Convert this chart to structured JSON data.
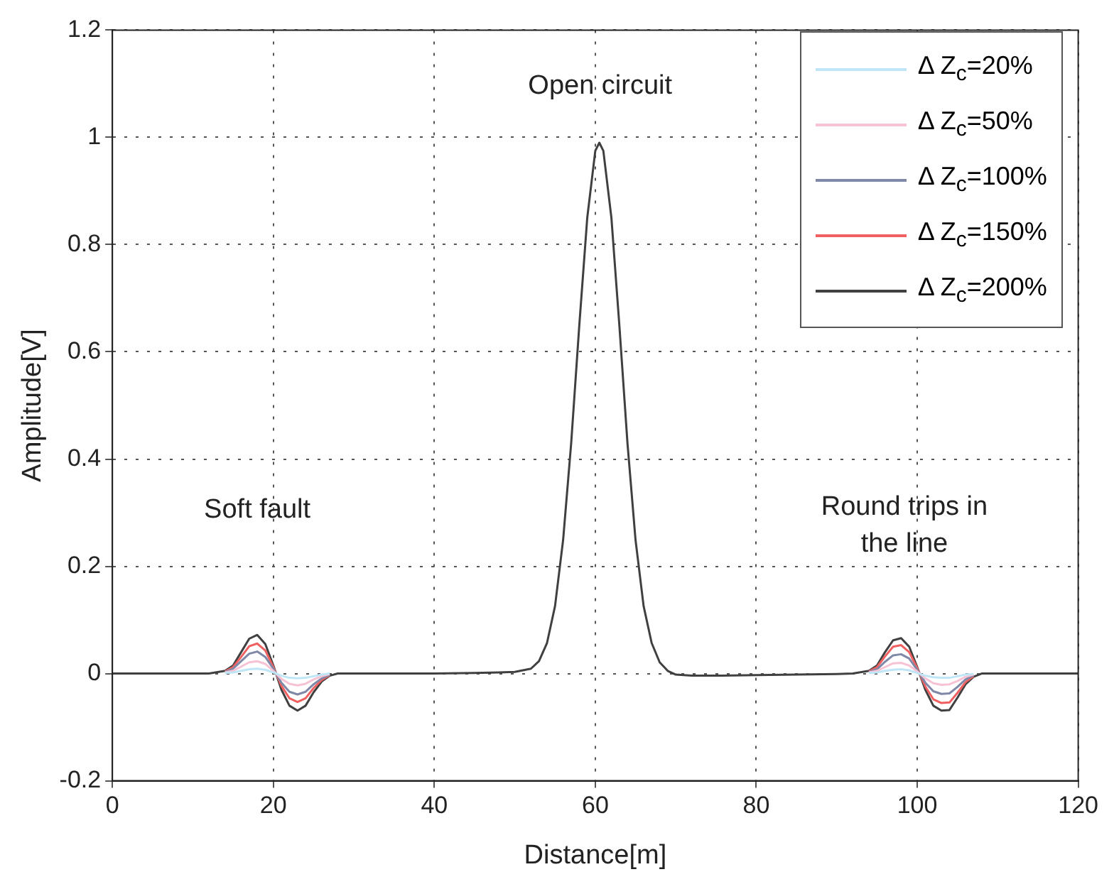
{
  "chart_data": {
    "type": "line",
    "xlabel": "Distance[m]",
    "ylabel": "Amplitude[V]",
    "x": [
      0,
      5,
      10,
      12,
      14,
      15,
      16,
      17,
      18,
      19,
      20,
      21,
      22,
      23,
      24,
      25,
      26,
      27,
      28,
      30,
      35,
      40,
      45,
      48,
      50,
      52,
      53,
      54,
      55,
      56,
      57,
      58,
      59,
      60,
      60.5,
      61,
      62,
      63,
      64,
      65,
      66,
      67,
      68,
      69,
      70,
      72,
      75,
      80,
      85,
      90,
      92,
      94,
      95,
      96,
      97,
      98,
      99,
      100,
      101,
      102,
      103,
      104,
      105,
      106,
      107,
      108,
      110,
      115,
      120
    ],
    "series": [
      {
        "name": "Δ Z$_{c}$=20%",
        "color": "#bfe6f7",
        "values": [
          null,
          null,
          null,
          null,
          0.001,
          0.002,
          0.005,
          0.008,
          0.009,
          0.007,
          0.002,
          -0.004,
          -0.008,
          -0.009,
          -0.008,
          -0.005,
          -0.002,
          0,
          null,
          null,
          null,
          null,
          null,
          null,
          null,
          null,
          null,
          null,
          null,
          null,
          null,
          null,
          null,
          null,
          null,
          null,
          null,
          null,
          null,
          null,
          null,
          null,
          null,
          null,
          null,
          null,
          null,
          null,
          null,
          null,
          null,
          0.001,
          0.002,
          0.005,
          0.007,
          0.008,
          0.006,
          0.001,
          -0.004,
          -0.007,
          -0.008,
          -0.008,
          -0.005,
          -0.002,
          -0.001,
          null,
          null,
          null,
          null
        ]
      },
      {
        "name": "Δ Z$_{c}$=50%",
        "color": "#f7c2d4",
        "values": [
          null,
          null,
          null,
          null,
          0.002,
          0.005,
          0.013,
          0.021,
          0.023,
          0.018,
          0.005,
          -0.01,
          -0.019,
          -0.022,
          -0.019,
          -0.011,
          -0.005,
          -0.001,
          null,
          null,
          null,
          null,
          null,
          null,
          null,
          null,
          null,
          null,
          null,
          null,
          null,
          null,
          null,
          null,
          null,
          null,
          null,
          null,
          null,
          null,
          null,
          null,
          null,
          null,
          null,
          null,
          null,
          null,
          null,
          null,
          null,
          0.002,
          0.005,
          0.012,
          0.019,
          0.02,
          0.015,
          0.004,
          -0.009,
          -0.018,
          -0.021,
          -0.02,
          -0.014,
          -0.006,
          -0.002,
          null,
          null,
          null,
          null
        ]
      },
      {
        "name": "Δ Z$_{c}$=100%",
        "color": "#8088a8",
        "values": [
          null,
          null,
          null,
          null,
          0.003,
          0.009,
          0.023,
          0.037,
          0.041,
          0.031,
          0.009,
          -0.017,
          -0.034,
          -0.039,
          -0.034,
          -0.02,
          -0.009,
          -0.002,
          null,
          null,
          null,
          null,
          null,
          null,
          null,
          null,
          null,
          null,
          null,
          null,
          null,
          null,
          null,
          null,
          null,
          null,
          null,
          null,
          null,
          null,
          null,
          null,
          null,
          null,
          null,
          null,
          null,
          null,
          null,
          null,
          null,
          0.003,
          0.008,
          0.022,
          0.034,
          0.036,
          0.028,
          0.007,
          -0.017,
          -0.033,
          -0.038,
          -0.037,
          -0.025,
          -0.011,
          -0.003,
          null,
          null,
          null,
          null
        ]
      },
      {
        "name": "Δ Z$_{c}$=150%",
        "color": "#f06060",
        "values": [
          null,
          null,
          null,
          null,
          0.004,
          0.012,
          0.031,
          0.051,
          0.056,
          0.043,
          0.012,
          -0.023,
          -0.046,
          -0.053,
          -0.046,
          -0.027,
          -0.012,
          -0.003,
          null,
          null,
          null,
          null,
          null,
          null,
          null,
          null,
          null,
          null,
          null,
          null,
          null,
          null,
          null,
          null,
          null,
          null,
          null,
          null,
          null,
          null,
          null,
          null,
          null,
          null,
          null,
          null,
          null,
          null,
          null,
          null,
          null,
          0.004,
          0.012,
          0.032,
          0.05,
          0.053,
          0.04,
          0.01,
          -0.024,
          -0.048,
          -0.055,
          -0.054,
          -0.036,
          -0.016,
          -0.005,
          null,
          null,
          null,
          null
        ]
      },
      {
        "name": "Δ Z$_{c}$=200%",
        "color": "#404040",
        "values": [
          0,
          0,
          0,
          0,
          0.005,
          0.015,
          0.04,
          0.065,
          0.072,
          0.055,
          0.015,
          -0.03,
          -0.06,
          -0.069,
          -0.06,
          -0.035,
          -0.015,
          -0.004,
          0,
          0,
          0,
          0,
          0.001,
          0.002,
          0.003,
          0.009,
          0.023,
          0.057,
          0.126,
          0.249,
          0.429,
          0.647,
          0.85,
          0.975,
          0.99,
          0.975,
          0.85,
          0.647,
          0.429,
          0.249,
          0.126,
          0.057,
          0.021,
          0.005,
          -0.002,
          -0.004,
          -0.004,
          -0.003,
          -0.002,
          -0.001,
          0,
          0.005,
          0.015,
          0.04,
          0.062,
          0.066,
          0.05,
          0.012,
          -0.03,
          -0.06,
          -0.069,
          -0.068,
          -0.045,
          -0.02,
          -0.006,
          0,
          0,
          0,
          0
        ]
      }
    ],
    "xlim": [
      0,
      120
    ],
    "xticks": [
      0,
      20,
      40,
      60,
      80,
      100,
      120
    ],
    "ylim": [
      -0.2,
      1.2
    ],
    "yticks": [
      -0.2,
      0,
      0.2,
      0.4,
      0.6,
      0.8,
      1,
      1.2
    ],
    "grid": true,
    "legend": "top right",
    "marker": "none",
    "line_style": "solid",
    "annotations": [
      "Open circuit",
      "Soft fault",
      "Round trips in the line"
    ]
  }
}
